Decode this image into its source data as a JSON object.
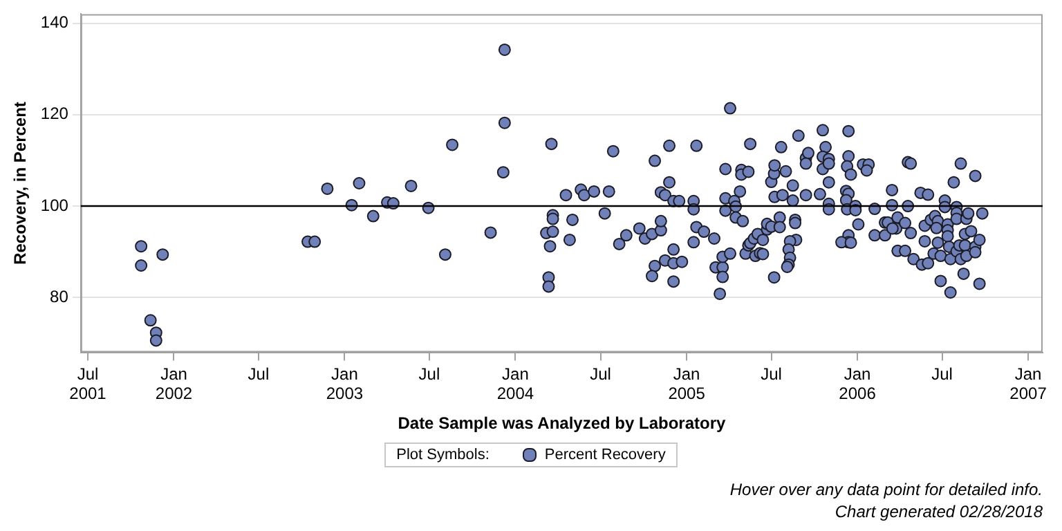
{
  "chart_data": {
    "type": "scatter",
    "xlabel": "Date Sample was Analyzed by Laboratory",
    "ylabel": "Recovery, in Percent",
    "legend_title": "Plot Symbols:",
    "legend": "bottom",
    "grid": "y",
    "marker": "circle",
    "xlim": [
      "2001-06-16",
      "2007-02-01"
    ],
    "xticks": [
      {
        "value": "2001-07",
        "label": "Jul 2001"
      },
      {
        "value": "2002-01",
        "label": "Jan 2002"
      },
      {
        "value": "2002-07",
        "label": "Jul"
      },
      {
        "value": "2003-01",
        "label": "Jan 2003"
      },
      {
        "value": "2003-07",
        "label": "Jul"
      },
      {
        "value": "2004-01",
        "label": "Jan 2004"
      },
      {
        "value": "2004-07",
        "label": "Jul"
      },
      {
        "value": "2005-01",
        "label": "Jan 2005"
      },
      {
        "value": "2005-07",
        "label": "Jul"
      },
      {
        "value": "2006-01",
        "label": "Jan 2006"
      },
      {
        "value": "2006-07",
        "label": "Jul"
      },
      {
        "value": "2007-01",
        "label": "Jan 2007"
      }
    ],
    "ylim": [
      68,
      142
    ],
    "yticks": [
      80,
      100,
      120,
      140
    ],
    "ref_lines": [
      {
        "axis": "y",
        "value": 100,
        "color": "#000000"
      }
    ],
    "annotations": [
      "Hover over any data point for detailed info.",
      "Chart generated 02/28/2018"
    ],
    "series": [
      {
        "name": "Percent Recovery",
        "color": "#7080b8",
        "x": [
          "2001-10-23",
          "2001-10-23",
          "2001-12-08",
          "2001-11-12",
          "2001-11-24",
          "2001-11-24",
          "2002-10-14",
          "2002-10-29",
          "2002-11-25",
          "2003-01-16",
          "2003-02-01",
          "2003-03-03",
          "2003-04-02",
          "2003-04-15",
          "2003-05-23",
          "2003-06-29",
          "2003-08-04",
          "2003-08-19",
          "2003-11-09",
          "2003-12-06",
          "2003-12-09",
          "2003-12-09",
          "2004-03-18",
          "2004-03-21",
          "2004-03-21",
          "2004-03-07",
          "2004-03-21",
          "2004-03-15",
          "2004-03-12",
          "2004-03-12",
          "2004-04-18",
          "2004-05-02",
          "2004-04-26",
          "2004-05-20",
          "2004-05-27",
          "2004-06-17",
          "2004-07-19",
          "2004-07-10",
          "2004-07-28",
          "2004-08-10",
          "2004-08-25",
          "2004-09-22",
          "2004-10-04",
          "2004-10-19",
          "2004-11-07",
          "2004-11-07",
          "2004-10-25",
          "2004-11-25",
          "2004-11-25",
          "2004-11-07",
          "2004-11-16",
          "2004-12-04",
          "2004-12-16",
          "2004-12-04",
          "2004-11-16",
          "2004-12-04",
          "2004-12-22",
          "2004-10-25",
          "2004-10-19",
          "2004-12-04",
          "2005-01-16",
          "2005-01-16",
          "2005-01-22",
          "2005-01-22",
          "2005-02-07",
          "2005-01-16",
          "2005-03-01",
          "2005-03-04",
          "2005-03-19",
          "2005-03-19",
          "2005-03-19",
          "2005-04-04",
          "2005-03-13",
          "2005-04-04",
          "2005-03-25",
          "2005-03-25",
          "2005-03-25",
          "2005-04-13",
          "2005-04-16",
          "2005-04-16",
          "2005-05-01",
          "2005-04-25",
          "2005-04-28",
          "2005-04-28",
          "2005-05-13",
          "2005-05-17",
          "2005-05-07",
          "2005-05-13",
          "2005-05-17",
          "2005-05-25",
          "2005-05-28",
          "2005-06-07",
          "2005-06-13",
          "2005-06-02",
          "2005-06-13",
          "2005-06-22",
          "2005-06-22",
          "2005-07-01",
          "2005-07-08",
          "2005-07-07",
          "2005-07-01",
          "2005-07-07",
          "2005-07-08",
          "2005-07-22",
          "2005-07-19",
          "2005-08-01",
          "2005-07-25",
          "2005-07-19",
          "2005-08-16",
          "2005-08-16",
          "2005-08-21",
          "2005-08-21",
          "2005-08-23",
          "2005-08-10",
          "2005-08-07",
          "2005-08-10",
          "2005-08-07",
          "2005-08-04",
          "2005-08-28",
          "2005-09-13",
          "2005-09-18",
          "2005-09-13",
          "2005-09-13",
          "2005-10-13",
          "2005-10-19",
          "2005-10-25",
          "2005-10-19",
          "2005-10-19",
          "2005-11-01",
          "2005-11-01",
          "2005-11-01",
          "2005-11-01",
          "2005-11-01",
          "2005-12-13",
          "2005-12-13",
          "2005-12-10",
          "2005-12-18",
          "2005-12-08",
          "2005-12-13",
          "2005-12-08",
          "2005-12-10",
          "2005-12-28",
          "2005-12-28",
          "2006-01-03",
          "2005-12-13",
          "2005-12-13",
          "2005-11-28",
          "2005-12-18",
          "2006-01-13",
          "2006-01-25",
          "2006-01-21",
          "2006-02-07",
          "2006-02-07",
          "2006-03-01",
          "2006-03-01",
          "2006-03-07",
          "2006-03-16",
          "2006-03-16",
          "2006-03-28",
          "2006-03-25",
          "2006-03-17",
          "2006-04-13",
          "2006-04-19",
          "2006-04-25",
          "2006-04-19",
          "2006-04-25",
          "2006-03-28",
          "2006-04-13",
          "2006-05-01",
          "2006-05-19",
          "2006-06-01",
          "2006-05-16",
          "2006-06-01",
          "2006-05-25",
          "2006-05-25",
          "2006-06-07",
          "2006-06-16",
          "2006-06-22",
          "2006-06-19",
          "2006-06-22",
          "2006-06-13",
          "2006-06-28",
          "2006-06-28",
          "2006-07-07",
          "2006-07-07",
          "2006-07-13",
          "2006-07-13",
          "2006-07-13",
          "2006-07-16",
          "2006-07-19",
          "2006-07-19",
          "2006-08-01",
          "2006-08-01",
          "2006-08-01",
          "2006-08-01",
          "2006-08-07",
          "2006-08-19",
          "2006-08-10",
          "2006-08-22",
          "2006-08-22",
          "2006-08-19",
          "2006-09-01",
          "2006-08-26",
          "2006-08-10",
          "2006-07-26",
          "2006-09-10",
          "2006-08-16",
          "2006-09-10",
          "2006-09-10",
          "2006-09-19",
          "2006-09-25",
          "2006-09-19"
        ],
        "values": [
          91.2,
          87.0,
          89.4,
          75.0,
          72.3,
          70.6,
          92.2,
          92.2,
          103.8,
          100.2,
          105.0,
          97.8,
          100.8,
          100.6,
          104.4,
          99.6,
          89.4,
          113.4,
          94.2,
          107.4,
          118.2,
          134.2,
          113.6,
          98.0,
          97.2,
          94.1,
          94.4,
          91.2,
          84.4,
          82.4,
          102.4,
          97.0,
          92.6,
          103.6,
          102.4,
          103.2,
          103.2,
          98.4,
          112.0,
          91.7,
          93.6,
          95.1,
          92.9,
          93.9,
          94.7,
          96.7,
          109.9,
          113.2,
          105.2,
          103.0,
          102.4,
          101.1,
          101.1,
          90.5,
          88.1,
          87.5,
          87.8,
          86.9,
          84.7,
          83.5,
          101.1,
          99.3,
          113.2,
          95.4,
          94.4,
          92.1,
          92.9,
          86.6,
          86.6,
          88.9,
          84.5,
          89.6,
          80.8,
          121.4,
          108.1,
          101.7,
          99.0,
          101.1,
          99.9,
          97.5,
          96.7,
          103.2,
          107.9,
          106.9,
          107.5,
          113.6,
          89.6,
          91.4,
          91.9,
          92.9,
          89.1,
          89.7,
          89.5,
          93.9,
          92.6,
          94.9,
          96.1,
          95.5,
          102.0,
          84.4,
          105.3,
          107.1,
          108.9,
          112.9,
          97.5,
          107.6,
          102.4,
          95.4,
          104.5,
          101.2,
          97.0,
          96.3,
          92.6,
          92.3,
          90.5,
          88.7,
          87.2,
          86.7,
          115.4,
          110.5,
          111.6,
          109.3,
          102.4,
          102.6,
          116.6,
          112.9,
          110.8,
          108.1,
          110.3,
          109.3,
          105.2,
          100.5,
          99.3,
          116.4,
          110.9,
          108.7,
          106.9,
          103.3,
          102.7,
          101.3,
          99.3,
          100.0,
          99.1,
          96.0,
          93.6,
          92.1,
          92.1,
          92.0,
          109.1,
          109.1,
          107.8,
          99.4,
          93.6,
          93.6,
          96.4,
          96.4,
          103.5,
          100.2,
          97.5,
          95.1,
          95.1,
          96.3,
          100.0,
          94.1,
          109.6,
          109.3,
          90.2,
          90.2,
          88.4,
          87.2,
          87.5,
          102.9,
          102.5,
          95.7,
          92.3,
          97.0,
          97.8,
          96.7,
          95.2,
          92.0,
          89.6,
          89.1,
          83.6,
          101.2,
          99.8,
          96.0,
          94.7,
          93.4,
          91.1,
          88.4,
          81.1,
          99.8,
          98.5,
          97.2,
          90.1,
          91.4,
          91.4,
          88.4,
          89.1,
          97.2,
          93.9,
          94.5,
          98.4,
          109.3,
          105.2,
          106.6,
          85.2,
          91.1,
          89.9,
          92.6,
          98.4,
          83.0
        ]
      }
    ]
  }
}
